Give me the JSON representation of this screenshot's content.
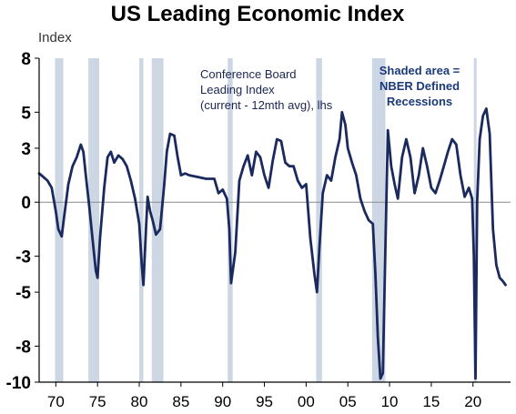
{
  "chart_data": {
    "type": "line",
    "title": "US Leading Economic Index",
    "ylabel": "Index",
    "xlabel": "",
    "ylim": [
      -10,
      8
    ],
    "xlim": [
      1968,
      2024.5
    ],
    "yticks": [
      8,
      5,
      3,
      0,
      -3,
      -5,
      -8,
      -10
    ],
    "ytick_labels": [
      "8",
      "5",
      "3",
      "0",
      "-3",
      "-5",
      "-8",
      "-10"
    ],
    "xticks": [
      1970,
      1975,
      1980,
      1985,
      1990,
      1995,
      2000,
      2005,
      2010,
      2015,
      2020
    ],
    "xtick_labels": [
      "70",
      "75",
      "80",
      "85",
      "90",
      "95",
      "00",
      "05",
      "10",
      "15",
      "20"
    ],
    "grid": false,
    "annotations": {
      "series_label": [
        "Conference Board",
        "Leading Index",
        "(current - 12mth avg), lhs"
      ],
      "shading_label": [
        "Shaded area =",
        "NBER Defined",
        "Recessions"
      ]
    },
    "recessions": [
      [
        1969.9,
        1970.9
      ],
      [
        1973.9,
        1975.2
      ],
      [
        1980.0,
        1980.5
      ],
      [
        1981.5,
        1982.9
      ],
      [
        1990.6,
        1991.2
      ],
      [
        2001.2,
        2001.9
      ],
      [
        2007.9,
        2009.5
      ],
      [
        2020.1,
        2020.4
      ]
    ],
    "series": [
      {
        "color": "#1a2a5e",
        "x": [
          1968.0,
          1968.5,
          1969.0,
          1969.5,
          1970.0,
          1970.3,
          1970.7,
          1971.0,
          1971.5,
          1972.0,
          1972.5,
          1973.0,
          1973.3,
          1973.6,
          1974.0,
          1974.5,
          1974.8,
          1975.0,
          1975.3,
          1975.8,
          1976.2,
          1976.6,
          1977.0,
          1977.5,
          1978.0,
          1978.5,
          1979.0,
          1979.5,
          1980.0,
          1980.3,
          1980.5,
          1980.8,
          1981.0,
          1981.3,
          1981.6,
          1982.0,
          1982.5,
          1983.0,
          1983.3,
          1983.7,
          1984.2,
          1984.6,
          1985.0,
          1985.5,
          1986.0,
          1987.0,
          1988.0,
          1989.0,
          1989.5,
          1990.0,
          1990.5,
          1990.8,
          1991.0,
          1991.5,
          1992.0,
          1992.5,
          1993.0,
          1993.5,
          1994.0,
          1994.5,
          1995.0,
          1995.5,
          1996.0,
          1996.5,
          1997.0,
          1997.5,
          1998.0,
          1998.5,
          1999.0,
          1999.5,
          2000.0,
          2000.5,
          2001.0,
          2001.3,
          2001.6,
          2002.0,
          2002.5,
          2003.0,
          2003.5,
          2004.0,
          2004.3,
          2004.7,
          2005.0,
          2005.5,
          2006.0,
          2006.5,
          2007.0,
          2007.5,
          2008.0,
          2008.3,
          2008.6,
          2008.9,
          2009.2,
          2009.5,
          2009.8,
          2010.2,
          2010.6,
          2011.0,
          2011.5,
          2012.0,
          2012.5,
          2013.0,
          2013.5,
          2014.0,
          2014.5,
          2015.0,
          2015.5,
          2016.0,
          2016.5,
          2017.0,
          2017.5,
          2018.0,
          2018.5,
          2019.0,
          2019.5,
          2019.9,
          2020.1,
          2020.3,
          2020.5,
          2020.8,
          2021.2,
          2021.6,
          2022.0,
          2022.4,
          2022.8,
          2023.2,
          2023.6,
          2023.9
        ],
        "y": [
          1.6,
          1.4,
          1.2,
          0.8,
          -0.5,
          -1.5,
          -1.9,
          -0.8,
          1.0,
          2.0,
          2.5,
          3.2,
          2.8,
          1.5,
          -0.2,
          -2.5,
          -3.8,
          -4.2,
          -2.0,
          0.8,
          2.5,
          2.8,
          2.2,
          2.6,
          2.4,
          2.0,
          1.2,
          0.2,
          -1.2,
          -3.5,
          -4.6,
          -1.5,
          0.3,
          -0.5,
          -1.0,
          -1.8,
          -1.5,
          1.0,
          2.8,
          3.8,
          3.7,
          2.5,
          1.5,
          1.6,
          1.5,
          1.4,
          1.3,
          1.3,
          0.5,
          0.7,
          0.2,
          -1.5,
          -4.5,
          -2.8,
          1.2,
          2.0,
          2.6,
          1.5,
          2.8,
          2.5,
          1.5,
          0.8,
          2.3,
          3.5,
          3.4,
          2.2,
          2.0,
          2.0,
          1.2,
          0.8,
          1.0,
          -2.0,
          -4.0,
          -5.0,
          -2.5,
          0.5,
          1.5,
          1.2,
          2.5,
          3.5,
          5.0,
          4.3,
          3.0,
          2.2,
          1.5,
          0.2,
          -0.5,
          -1.0,
          -1.2,
          -4.0,
          -7.5,
          -9.8,
          -9.5,
          -2.5,
          4.0,
          2.0,
          1.0,
          0.2,
          2.5,
          3.5,
          2.5,
          0.5,
          1.5,
          3.0,
          2.0,
          0.8,
          0.5,
          1.2,
          2.0,
          2.8,
          3.5,
          3.2,
          1.5,
          0.3,
          0.8,
          0.2,
          -3.0,
          -9.8,
          0.0,
          3.5,
          4.8,
          5.2,
          3.8,
          -1.5,
          -3.5,
          -4.2,
          -4.4,
          -4.6
        ]
      }
    ]
  }
}
